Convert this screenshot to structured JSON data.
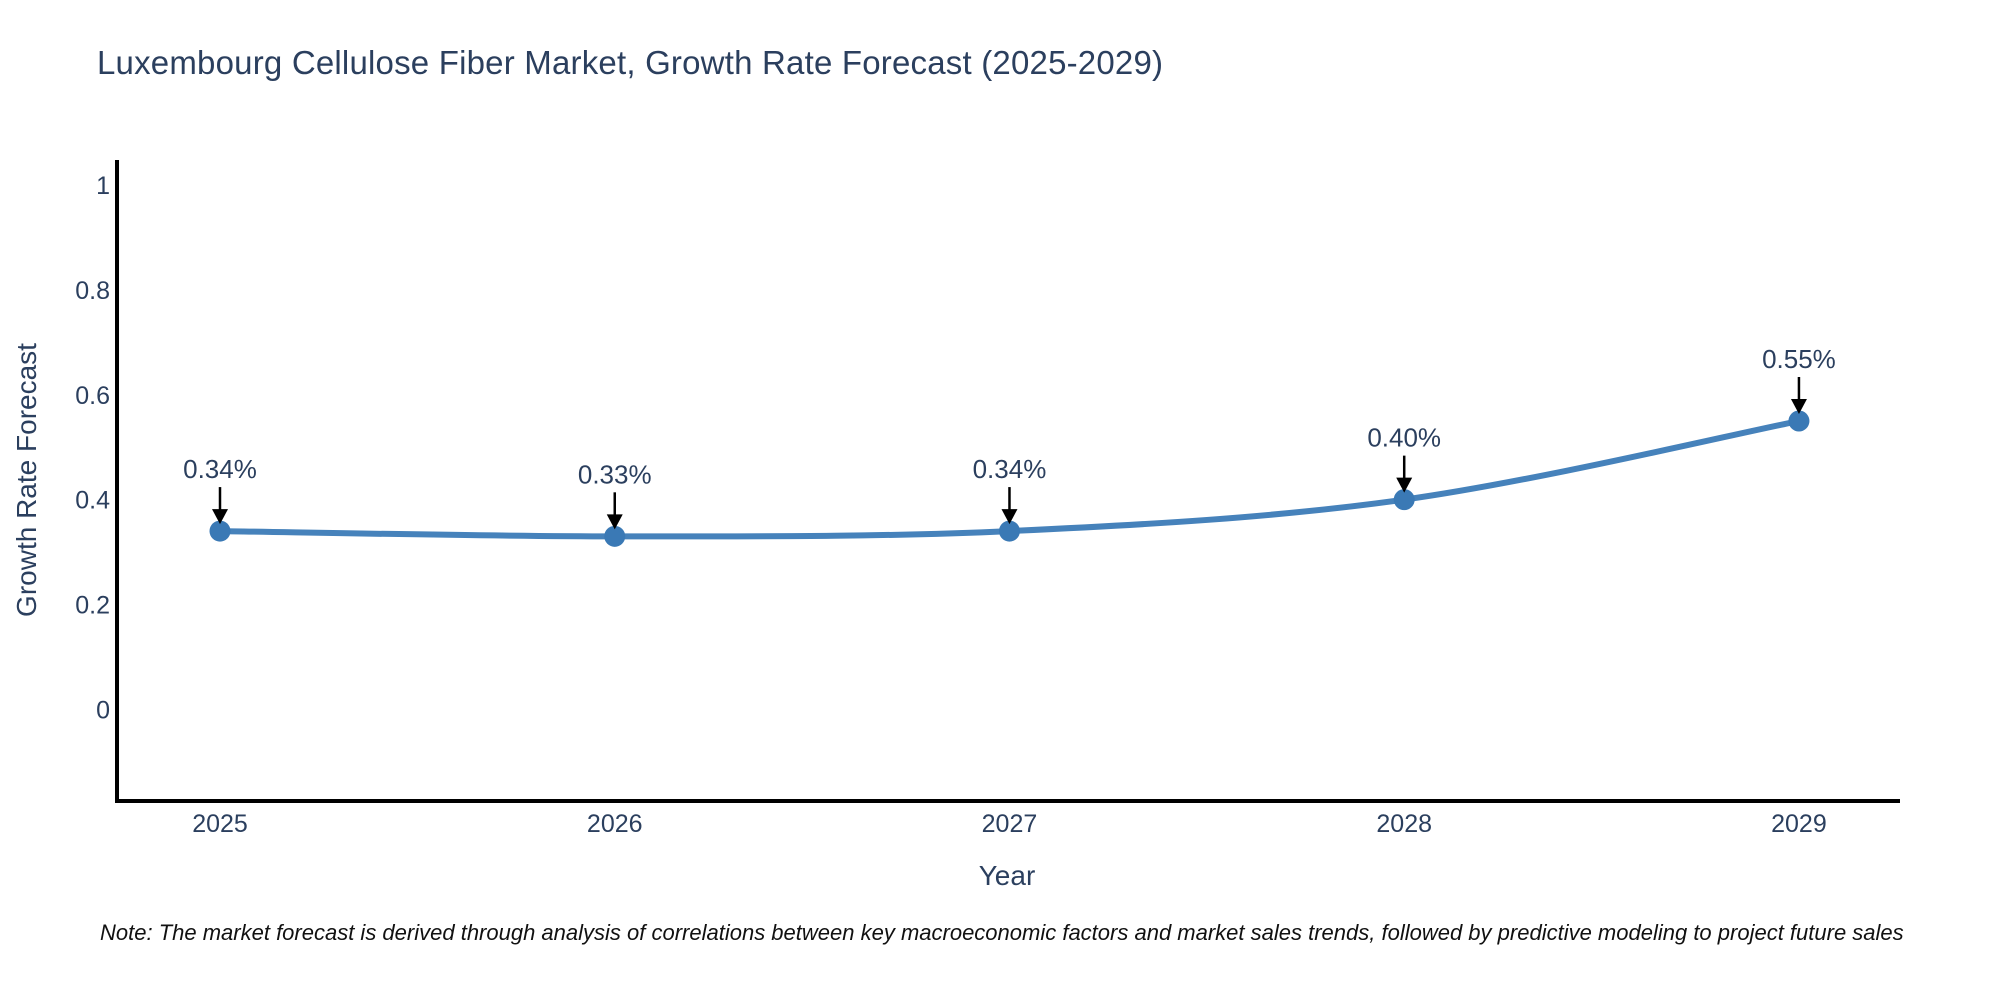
{
  "title": "Luxembourg Cellulose Fiber Market, Growth Rate Forecast (2025-2029)",
  "note": "Note: The market forecast is derived through analysis of correlations between key macroeconomic factors and market sales trends, followed by predictive modeling to project future sales",
  "colors": {
    "line": "#4682bb",
    "marker": "#3a79b5",
    "text": "#2b3f5e",
    "axis": "#000000",
    "arrow": "#000000",
    "note_text": "#111111",
    "background": "#ffffff"
  },
  "chart_data": {
    "type": "line",
    "title": "Luxembourg Cellulose Fiber Market, Growth Rate Forecast (2025-2029)",
    "xlabel": "Year",
    "ylabel": "Growth Rate Forecast",
    "x": [
      2025,
      2026,
      2027,
      2028,
      2029
    ],
    "values": [
      0.34,
      0.33,
      0.34,
      0.4,
      0.55
    ],
    "point_labels": [
      "0.34%",
      "0.33%",
      "0.34%",
      "0.40%",
      "0.55%"
    ],
    "xtick_labels": [
      "2025",
      "2026",
      "2027",
      "2028",
      "2029"
    ],
    "ytick_values": [
      0,
      0.2,
      0.4,
      0.6,
      0.8,
      1
    ],
    "ytick_labels": [
      "0",
      "0.2",
      "0.4",
      "0.6",
      "0.8",
      "1"
    ],
    "ylim": [
      -0.175,
      1.048
    ],
    "xlim": [
      2024.734,
      2029.256
    ],
    "grid": false,
    "legend": false,
    "line_shape": "spline",
    "marker": "circle",
    "annotations_arrow": "down"
  }
}
